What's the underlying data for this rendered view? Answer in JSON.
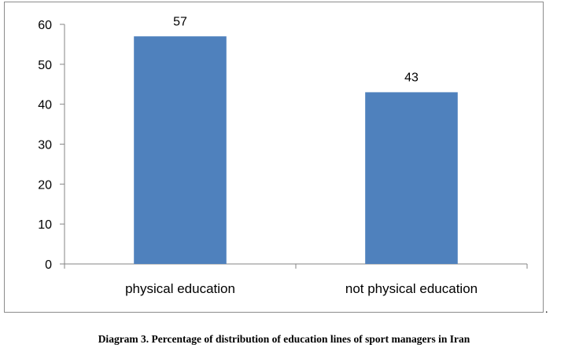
{
  "caption": "Diagram 3. Percentage of distribution of education lines of sport managers in Iran",
  "trailing_mark": ".",
  "chart_data": {
    "type": "bar",
    "categories": [
      "physical education",
      "not physical education"
    ],
    "values": [
      57,
      43
    ],
    "data_labels": [
      "57",
      "43"
    ],
    "title": "",
    "xlabel": "",
    "ylabel": "",
    "ylim": [
      0,
      60
    ],
    "yticks": [
      0,
      10,
      20,
      30,
      40,
      50,
      60
    ],
    "grid": false,
    "legend": "none",
    "bar_color": "#4f81bd"
  }
}
